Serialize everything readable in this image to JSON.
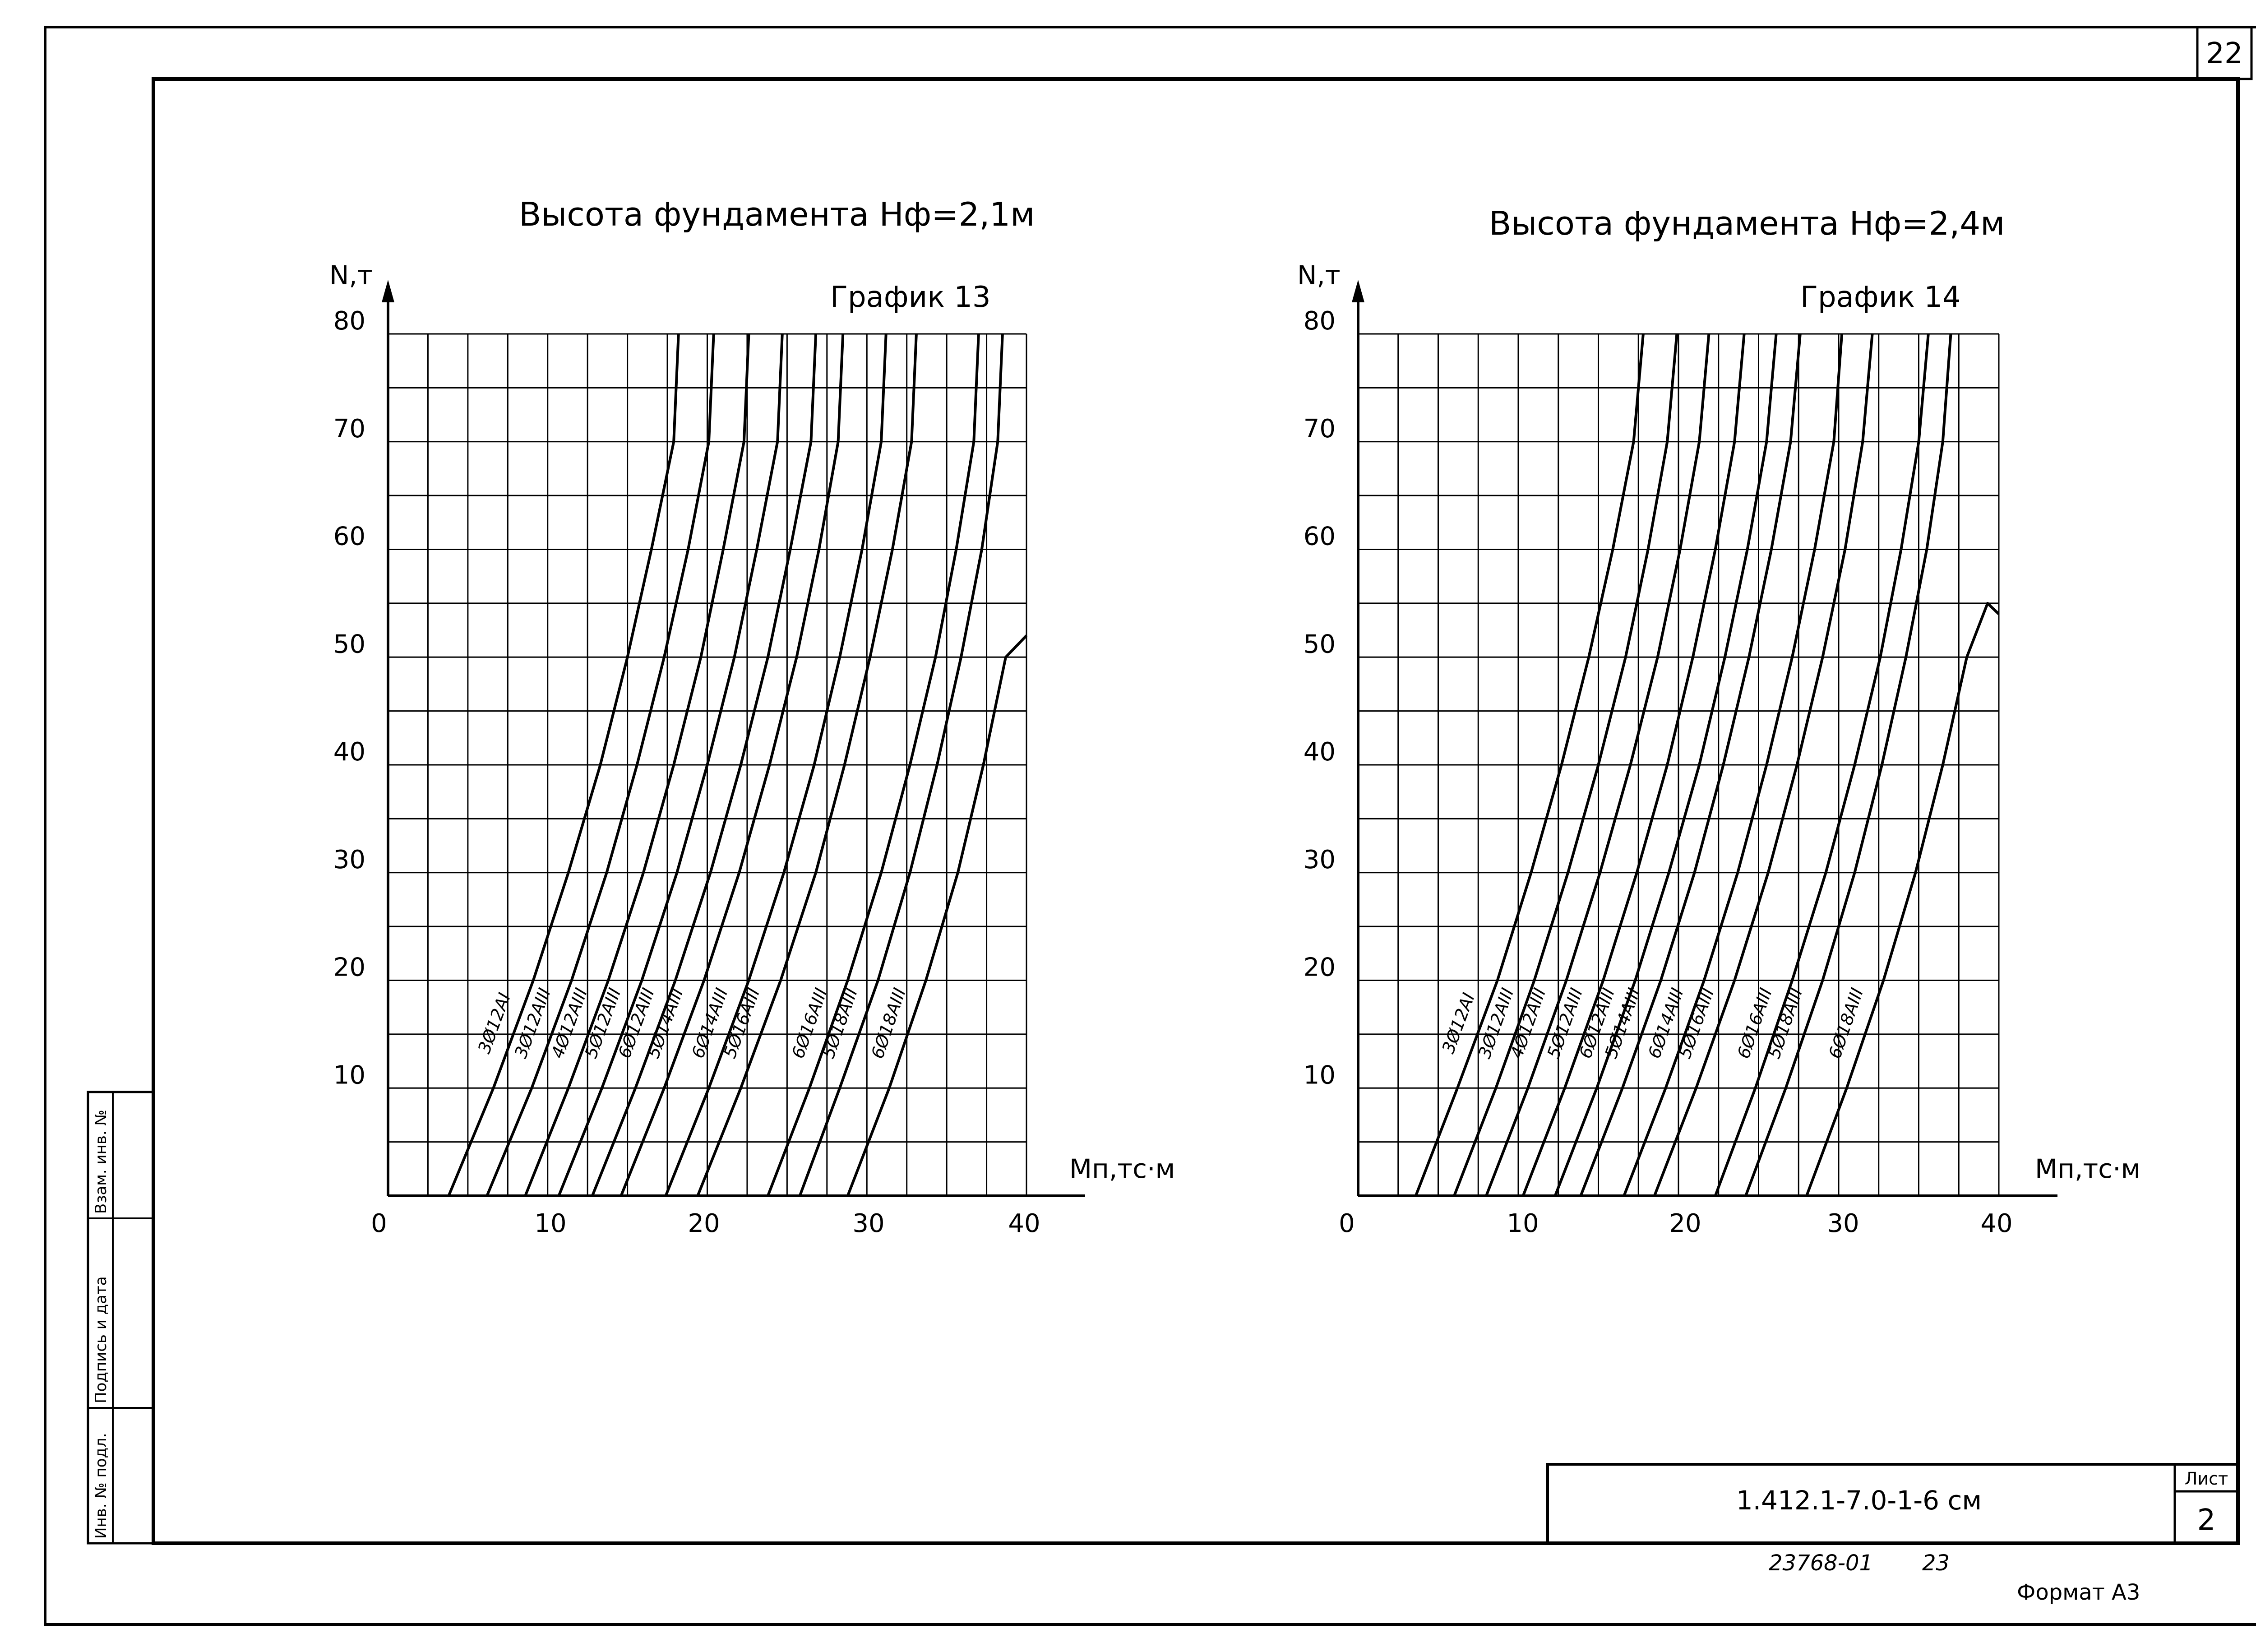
{
  "sheet": {
    "page_number": "22",
    "designation": "1.412.1-7.0-1-6 см",
    "list_label": "Лист",
    "list_number": "2",
    "archive_number": "23768-01",
    "archive_page": "23",
    "format": "Формат А3",
    "side_labels": [
      "Инв. № подл.",
      "Подпись и дата",
      "Взам. инв. №"
    ]
  },
  "chart_data": [
    {
      "type": "line",
      "title": "Высота фундамента Hф=2,1м",
      "subtitle": "График 13",
      "xlabel": "Mп,тс·м",
      "ylabel": "N,т",
      "xlim": [
        0,
        40
      ],
      "ylim": [
        0,
        80
      ],
      "x_ticks": [
        "0",
        "10",
        "20",
        "30",
        "40"
      ],
      "y_ticks": [
        "10",
        "20",
        "30",
        "40",
        "50",
        "60",
        "70",
        "80"
      ],
      "grid": true,
      "series": [
        {
          "name": "3Ø12AI",
          "points": [
            [
              3.8,
              0
            ],
            [
              6.6,
              10
            ],
            [
              9.1,
              20
            ],
            [
              11.3,
              30
            ],
            [
              13.3,
              40
            ],
            [
              15.0,
              50
            ],
            [
              16.5,
              60
            ],
            [
              17.9,
              70
            ],
            [
              18.2,
              80
            ]
          ]
        },
        {
          "name": "3Ø12AIII",
          "points": [
            [
              6.2,
              0
            ],
            [
              9.0,
              10
            ],
            [
              11.5,
              20
            ],
            [
              13.7,
              30
            ],
            [
              15.6,
              40
            ],
            [
              17.3,
              50
            ],
            [
              18.8,
              60
            ],
            [
              20.1,
              70
            ],
            [
              20.4,
              80
            ]
          ]
        },
        {
          "name": "4Ø12AIII",
          "points": [
            [
              8.6,
              0
            ],
            [
              11.3,
              10
            ],
            [
              13.8,
              20
            ],
            [
              16.0,
              30
            ],
            [
              17.9,
              40
            ],
            [
              19.6,
              50
            ],
            [
              21.0,
              60
            ],
            [
              22.3,
              70
            ],
            [
              22.6,
              80
            ]
          ]
        },
        {
          "name": "5Ø12AIII",
          "points": [
            [
              10.7,
              0
            ],
            [
              13.4,
              10
            ],
            [
              15.9,
              20
            ],
            [
              18.1,
              30
            ],
            [
              20.0,
              40
            ],
            [
              21.7,
              50
            ],
            [
              23.1,
              60
            ],
            [
              24.4,
              70
            ],
            [
              24.7,
              80
            ]
          ]
        },
        {
          "name": "6Ø12AIII",
          "points": [
            [
              12.8,
              0
            ],
            [
              15.5,
              10
            ],
            [
              18.0,
              20
            ],
            [
              20.2,
              30
            ],
            [
              22.1,
              40
            ],
            [
              23.8,
              50
            ],
            [
              25.2,
              60
            ],
            [
              26.5,
              70
            ],
            [
              26.8,
              80
            ]
          ]
        },
        {
          "name": "5Ø14AIII",
          "points": [
            [
              14.6,
              0
            ],
            [
              17.3,
              10
            ],
            [
              19.8,
              20
            ],
            [
              22.0,
              30
            ],
            [
              23.9,
              40
            ],
            [
              25.6,
              50
            ],
            [
              27.0,
              60
            ],
            [
              28.2,
              70
            ],
            [
              28.5,
              80
            ]
          ]
        },
        {
          "name": "6Ø14AIII",
          "points": [
            [
              17.4,
              0
            ],
            [
              20.1,
              10
            ],
            [
              22.6,
              20
            ],
            [
              24.8,
              30
            ],
            [
              26.7,
              40
            ],
            [
              28.3,
              50
            ],
            [
              29.7,
              60
            ],
            [
              30.9,
              70
            ],
            [
              31.2,
              80
            ]
          ]
        },
        {
          "name": "5Ø16AIII",
          "points": [
            [
              19.4,
              0
            ],
            [
              22.1,
              10
            ],
            [
              24.6,
              20
            ],
            [
              26.8,
              30
            ],
            [
              28.6,
              40
            ],
            [
              30.2,
              50
            ],
            [
              31.6,
              60
            ],
            [
              32.8,
              70
            ],
            [
              33.1,
              80
            ]
          ]
        },
        {
          "name": "6Ø16AIII",
          "points": [
            [
              23.8,
              0
            ],
            [
              26.4,
              10
            ],
            [
              28.8,
              20
            ],
            [
              30.9,
              30
            ],
            [
              32.7,
              40
            ],
            [
              34.3,
              50
            ],
            [
              35.6,
              60
            ],
            [
              36.7,
              70
            ],
            [
              37.0,
              80
            ]
          ]
        },
        {
          "name": "5Ø18AIII",
          "points": [
            [
              25.8,
              0
            ],
            [
              28.3,
              10
            ],
            [
              30.7,
              20
            ],
            [
              32.7,
              30
            ],
            [
              34.4,
              40
            ],
            [
              35.9,
              50
            ],
            [
              37.2,
              60
            ],
            [
              38.2,
              70
            ],
            [
              38.5,
              80
            ]
          ]
        },
        {
          "name": "6Ø18AIII",
          "points": [
            [
              28.8,
              0
            ],
            [
              31.4,
              10
            ],
            [
              33.7,
              20
            ],
            [
              35.7,
              30
            ],
            [
              37.3,
              40
            ],
            [
              38.7,
              50
            ],
            [
              40.0,
              52
            ]
          ]
        }
      ]
    },
    {
      "type": "line",
      "title": "Высота фундамента Hф=2,4м",
      "subtitle": "График 14",
      "xlabel": "Mп,тс·м",
      "ylabel": "N,т",
      "xlim": [
        0,
        40
      ],
      "ylim": [
        0,
        80
      ],
      "x_ticks": [
        "0",
        "10",
        "20",
        "30",
        "40"
      ],
      "y_ticks": [
        "10",
        "20",
        "30",
        "40",
        "50",
        "60",
        "70",
        "80"
      ],
      "grid": true,
      "series": [
        {
          "name": "3Ø12AI",
          "points": [
            [
              3.6,
              0
            ],
            [
              6.2,
              10
            ],
            [
              8.7,
              20
            ],
            [
              10.8,
              30
            ],
            [
              12.7,
              40
            ],
            [
              14.4,
              50
            ],
            [
              15.9,
              60
            ],
            [
              17.2,
              70
            ],
            [
              17.8,
              80
            ]
          ]
        },
        {
          "name": "3Ø12AIII",
          "points": [
            [
              6.0,
              0
            ],
            [
              8.6,
              10
            ],
            [
              11.0,
              20
            ],
            [
              13.1,
              30
            ],
            [
              15.0,
              40
            ],
            [
              16.7,
              50
            ],
            [
              18.1,
              60
            ],
            [
              19.3,
              70
            ],
            [
              19.9,
              80
            ]
          ]
        },
        {
          "name": "4Ø12AIII",
          "points": [
            [
              8.0,
              0
            ],
            [
              10.6,
              10
            ],
            [
              13.0,
              20
            ],
            [
              15.1,
              30
            ],
            [
              17.0,
              40
            ],
            [
              18.7,
              50
            ],
            [
              20.1,
              60
            ],
            [
              21.3,
              70
            ],
            [
              21.9,
              80
            ]
          ]
        },
        {
          "name": "5Ø12AIII",
          "points": [
            [
              10.3,
              0
            ],
            [
              12.9,
              10
            ],
            [
              15.3,
              20
            ],
            [
              17.4,
              30
            ],
            [
              19.3,
              40
            ],
            [
              20.9,
              50
            ],
            [
              22.3,
              60
            ],
            [
              23.5,
              70
            ],
            [
              24.1,
              80
            ]
          ]
        },
        {
          "name": "6Ø12AIII",
          "points": [
            [
              12.3,
              0
            ],
            [
              14.9,
              10
            ],
            [
              17.3,
              20
            ],
            [
              19.4,
              30
            ],
            [
              21.3,
              40
            ],
            [
              22.9,
              50
            ],
            [
              24.3,
              60
            ],
            [
              25.5,
              70
            ],
            [
              26.1,
              80
            ]
          ]
        },
        {
          "name": "5Ø14AIII",
          "points": [
            [
              13.9,
              0
            ],
            [
              16.5,
              10
            ],
            [
              18.9,
              20
            ],
            [
              21.0,
              30
            ],
            [
              22.8,
              40
            ],
            [
              24.4,
              50
            ],
            [
              25.8,
              60
            ],
            [
              27.0,
              70
            ],
            [
              27.6,
              80
            ]
          ]
        },
        {
          "name": "6Ø14AIII",
          "points": [
            [
              16.6,
              0
            ],
            [
              19.2,
              10
            ],
            [
              21.6,
              20
            ],
            [
              23.7,
              30
            ],
            [
              25.5,
              40
            ],
            [
              27.1,
              50
            ],
            [
              28.5,
              60
            ],
            [
              29.7,
              70
            ],
            [
              30.2,
              80
            ]
          ]
        },
        {
          "name": "5Ø16AIII",
          "points": [
            [
              18.5,
              0
            ],
            [
              21.1,
              10
            ],
            [
              23.5,
              20
            ],
            [
              25.6,
              30
            ],
            [
              27.4,
              40
            ],
            [
              29.0,
              50
            ],
            [
              30.4,
              60
            ],
            [
              31.5,
              70
            ],
            [
              32.1,
              80
            ]
          ]
        },
        {
          "name": "6Ø16AIII",
          "points": [
            [
              22.3,
              0
            ],
            [
              24.8,
              10
            ],
            [
              27.1,
              20
            ],
            [
              29.2,
              30
            ],
            [
              31.0,
              40
            ],
            [
              32.6,
              50
            ],
            [
              33.9,
              60
            ],
            [
              35.0,
              70
            ],
            [
              35.6,
              80
            ]
          ]
        },
        {
          "name": "5Ø18AIII",
          "points": [
            [
              24.2,
              0
            ],
            [
              26.7,
              10
            ],
            [
              29.0,
              20
            ],
            [
              31.0,
              30
            ],
            [
              32.7,
              40
            ],
            [
              34.2,
              50
            ],
            [
              35.5,
              60
            ],
            [
              36.5,
              70
            ],
            [
              37.0,
              80
            ]
          ]
        },
        {
          "name": "6Ø18AIII",
          "points": [
            [
              28.0,
              0
            ],
            [
              30.5,
              10
            ],
            [
              32.8,
              20
            ],
            [
              34.8,
              30
            ],
            [
              36.5,
              40
            ],
            [
              38.0,
              50
            ],
            [
              39.3,
              55
            ],
            [
              40.0,
              54
            ]
          ]
        }
      ]
    }
  ]
}
